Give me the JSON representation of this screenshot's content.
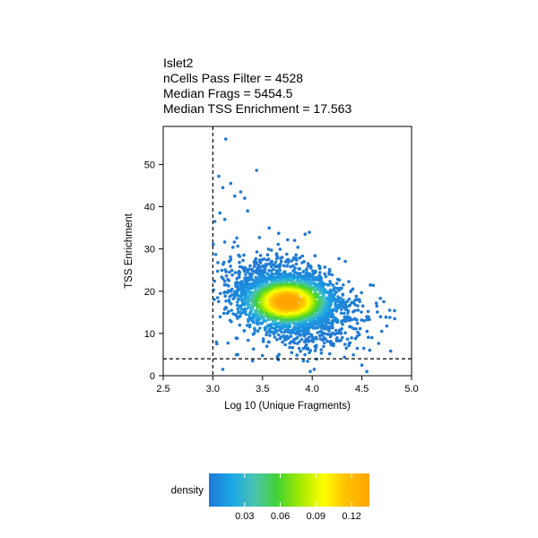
{
  "title_lines": [
    "Islet2",
    "nCells Pass Filter = 4528",
    "Median Frags = 5454.5",
    "Median TSS Enrichment = 17.563"
  ],
  "chart_data": {
    "type": "scatter",
    "xlabel": "Log 10 (Unique Fragments)",
    "ylabel": "TSS Enrichment",
    "xlim": [
      2.5,
      5.0
    ],
    "ylim": [
      0,
      59
    ],
    "x_ticks": [
      "2.5",
      "3.0",
      "3.5",
      "4.0",
      "4.5",
      "5.0"
    ],
    "y_ticks": [
      "0",
      "10",
      "20",
      "30",
      "40",
      "50"
    ],
    "grid": false,
    "thresholds": {
      "x": 3.0,
      "y": 4
    },
    "n_points": 4528,
    "density_center": {
      "x": 3.75,
      "y": 17.5
    },
    "outliers": [
      {
        "x": 3.13,
        "y": 56.0
      },
      {
        "x": 3.44,
        "y": 48.6
      },
      {
        "x": 3.06,
        "y": 47.2
      },
      {
        "x": 3.1,
        "y": 44.5
      },
      {
        "x": 3.18,
        "y": 45.5
      },
      {
        "x": 3.22,
        "y": 42.5
      },
      {
        "x": 3.32,
        "y": 42.0
      },
      {
        "x": 3.28,
        "y": 43.5
      },
      {
        "x": 3.07,
        "y": 38.5
      },
      {
        "x": 3.12,
        "y": 37.0
      },
      {
        "x": 3.35,
        "y": 39.0
      },
      {
        "x": 3.02,
        "y": 36.5
      },
      {
        "x": 3.98,
        "y": 1.0
      },
      {
        "x": 4.02,
        "y": 1.5
      },
      {
        "x": 4.55,
        "y": 1.0
      },
      {
        "x": 4.5,
        "y": 2.5
      },
      {
        "x": 3.65,
        "y": 4.5
      },
      {
        "x": 3.4,
        "y": 3.5
      },
      {
        "x": 3.25,
        "y": 5.0
      },
      {
        "x": 3.1,
        "y": 1.5
      },
      {
        "x": 4.83,
        "y": 13.5
      },
      {
        "x": 4.78,
        "y": 15.5
      },
      {
        "x": 4.72,
        "y": 17.5
      },
      {
        "x": 4.7,
        "y": 10.5
      },
      {
        "x": 4.6,
        "y": 9.0
      },
      {
        "x": 4.65,
        "y": 16.5
      }
    ],
    "colorbar": {
      "label": "density",
      "ticks": [
        "0.03",
        "0.06",
        "0.09",
        "0.12"
      ],
      "range": [
        0,
        0.135
      ],
      "colors": [
        "#1f78d4",
        "#19a7e6",
        "#4cc3b0",
        "#41d232",
        "#a6ea00",
        "#ffff00",
        "#ffc000",
        "#ffa500"
      ]
    }
  }
}
